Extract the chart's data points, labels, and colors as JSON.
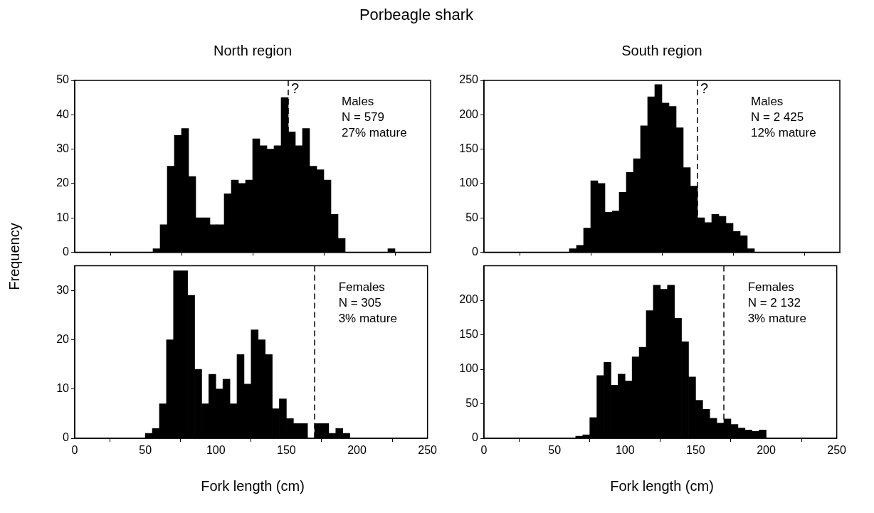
{
  "chart_data": [
    {
      "type": "histogram",
      "title": "Porbeagle shark",
      "subtitle": "North region",
      "ylabel": "Frequency",
      "color": "#000000",
      "bins": [
        55,
        60,
        65,
        70,
        75,
        80,
        85,
        90,
        95,
        100,
        105,
        110,
        115,
        120,
        125,
        130,
        135,
        140,
        145,
        150,
        155,
        160,
        165,
        170,
        175,
        180,
        185,
        190,
        195,
        200,
        205,
        210,
        215,
        220,
        225
      ],
      "values": [
        1,
        8,
        25,
        34,
        36,
        22,
        10,
        10,
        8,
        8,
        17,
        21,
        20,
        21,
        33,
        31,
        30,
        31,
        45,
        35,
        31,
        36,
        25,
        24,
        21,
        11,
        4,
        0,
        0,
        0,
        0,
        0,
        0,
        1
      ],
      "xlim": [
        0,
        250
      ],
      "xticks": [
        0,
        50,
        100,
        150,
        200,
        250
      ],
      "ylim": [
        0,
        50
      ],
      "yticks": [
        0,
        10,
        20,
        30,
        40,
        50
      ],
      "tick_labels": "y",
      "ref_lines": [
        {
          "axis": "x",
          "value": 150,
          "label": "?",
          "line_style": "dashed"
        }
      ],
      "annotations": [
        "Males",
        "N = 579",
        "27% mature"
      ]
    },
    {
      "type": "histogram",
      "xlabel": "Fork length (cm)",
      "color": "#000000",
      "bins": [
        50,
        55,
        60,
        65,
        70,
        75,
        80,
        85,
        90,
        95,
        100,
        105,
        110,
        115,
        120,
        125,
        130,
        135,
        140,
        145,
        150,
        155,
        160,
        165,
        170,
        175,
        180,
        185,
        190,
        195,
        200
      ],
      "values": [
        1,
        2,
        7,
        20,
        34,
        34,
        29,
        14,
        7,
        13,
        10,
        12,
        7,
        17,
        11,
        22,
        20,
        17,
        6,
        8,
        4,
        3,
        3,
        0,
        3,
        3,
        1,
        2,
        1,
        0
      ],
      "xlim": [
        0,
        250
      ],
      "xticks": [
        0,
        50,
        100,
        150,
        200,
        250
      ],
      "ylim": [
        0,
        35
      ],
      "yticks": [
        0,
        10,
        20,
        30
      ],
      "ref_lines": [
        {
          "axis": "x",
          "value": 170,
          "line_style": "dashed"
        }
      ],
      "annotations": [
        "Females",
        "N = 305",
        "3% mature"
      ]
    },
    {
      "type": "histogram",
      "subtitle": "South region",
      "color": "#000000",
      "bins": [
        60,
        65,
        70,
        75,
        80,
        85,
        90,
        95,
        100,
        105,
        110,
        115,
        120,
        125,
        130,
        135,
        140,
        145,
        150,
        155,
        160,
        165,
        170,
        175,
        180,
        185,
        190
      ],
      "values": [
        5,
        10,
        35,
        104,
        100,
        58,
        60,
        87,
        116,
        136,
        184,
        226,
        244,
        217,
        212,
        181,
        123,
        96,
        50,
        43,
        55,
        52,
        42,
        30,
        24,
        5
      ],
      "xlim": [
        0,
        250
      ],
      "xticks": [
        0,
        50,
        100,
        150,
        200,
        250
      ],
      "ylim": [
        0,
        250
      ],
      "yticks": [
        0,
        50,
        100,
        150,
        200,
        250
      ],
      "tick_labels": "y",
      "ref_lines": [
        {
          "axis": "x",
          "value": 150,
          "label": "?",
          "line_style": "dashed"
        }
      ],
      "annotations": [
        "Males",
        "N = 2 425",
        "12% mature"
      ]
    },
    {
      "type": "histogram",
      "xlabel": "Fork length (cm)",
      "color": "#000000",
      "bins": [
        60,
        65,
        70,
        75,
        80,
        85,
        90,
        95,
        100,
        105,
        110,
        115,
        120,
        125,
        130,
        135,
        140,
        145,
        150,
        155,
        160,
        165,
        170,
        175,
        180,
        185,
        190,
        195,
        200
      ],
      "values": [
        null,
        3,
        5,
        30,
        91,
        110,
        77,
        93,
        83,
        118,
        132,
        185,
        222,
        216,
        222,
        174,
        140,
        89,
        55,
        42,
        29,
        22,
        28,
        20,
        15,
        12,
        10,
        12
      ],
      "xlim": [
        0,
        250
      ],
      "xticks": [
        0,
        50,
        100,
        150,
        200,
        250
      ],
      "ylim": [
        0,
        250
      ],
      "yticks": [
        0,
        50,
        100,
        150,
        200
      ],
      "ref_lines": [
        {
          "axis": "x",
          "value": 170,
          "line_style": "dashed"
        }
      ],
      "annotations": [
        "Females",
        "N = 2 132",
        "3% mature"
      ]
    }
  ]
}
